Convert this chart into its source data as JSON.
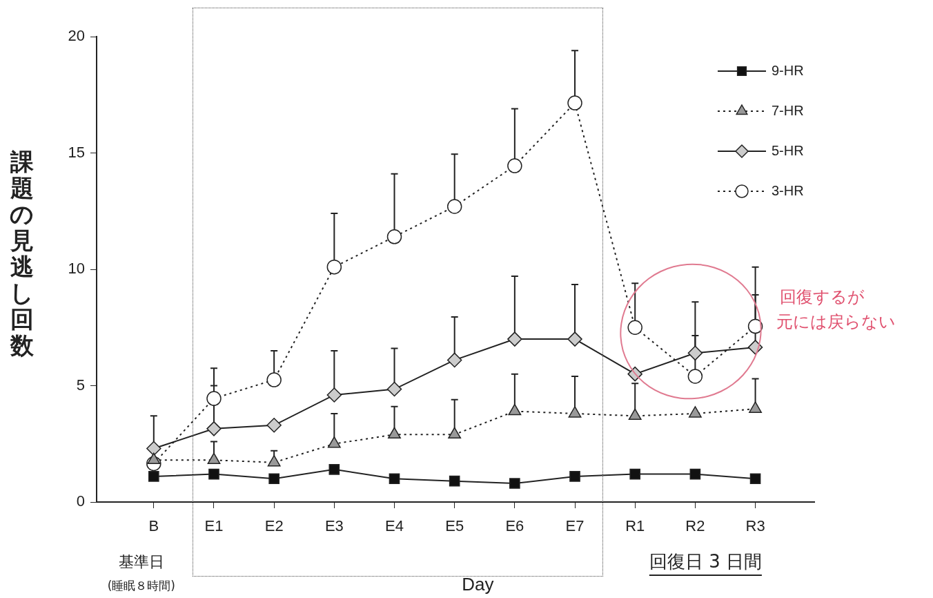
{
  "chart_data": {
    "type": "line",
    "xlabel": "Day",
    "ylabel": "課題の見逃し回数",
    "categories": [
      "B",
      "E1",
      "E2",
      "E3",
      "E4",
      "E5",
      "E6",
      "E7",
      "R1",
      "R2",
      "R3"
    ],
    "ylim": [
      0,
      20
    ],
    "yticks": [
      0,
      5,
      10,
      15,
      20
    ],
    "grid": false,
    "legend": "top right",
    "series": [
      {
        "name": "9-HR",
        "color": "#111111",
        "marker": "square",
        "line_style": "solid",
        "values": [
          1.1,
          1.2,
          1.0,
          1.4,
          1.0,
          0.9,
          0.8,
          1.1,
          1.2,
          1.2,
          1.0
        ]
      },
      {
        "name": "7-HR",
        "color": "#999999",
        "marker": "triangle",
        "line_style": "dotted",
        "values": [
          1.8,
          1.8,
          1.7,
          2.5,
          2.9,
          2.9,
          3.9,
          3.8,
          3.7,
          3.8,
          4.0
        ],
        "errors": [
          null,
          [
            1.8,
            2.6
          ],
          [
            1.7,
            2.2
          ],
          [
            2.5,
            3.8
          ],
          [
            2.9,
            4.1
          ],
          [
            2.9,
            4.4
          ],
          [
            3.9,
            5.5
          ],
          [
            3.8,
            5.4
          ],
          [
            3.7,
            5.1
          ],
          null,
          [
            4.0,
            5.3
          ]
        ]
      },
      {
        "name": "5-HR",
        "color": "#cccccc",
        "marker": "diamond",
        "line_style": "solid",
        "values": [
          2.3,
          3.15,
          3.3,
          4.6,
          4.85,
          6.1,
          7.0,
          7.0,
          5.5,
          6.4,
          6.65
        ],
        "errors": [
          [
            2.3,
            3.7
          ],
          [
            3.15,
            5.0
          ],
          null,
          [
            4.6,
            6.5
          ],
          [
            4.85,
            6.6
          ],
          [
            6.1,
            7.95
          ],
          [
            7.0,
            9.7
          ],
          [
            7.0,
            9.35
          ],
          null,
          [
            6.4,
            7.15
          ],
          [
            6.65,
            8.9
          ]
        ]
      },
      {
        "name": "3-HR",
        "color": "#ffffff",
        "marker": "circle",
        "line_style": "dotted",
        "values": [
          1.65,
          4.45,
          5.25,
          10.1,
          11.4,
          12.7,
          14.45,
          17.15,
          7.5,
          5.4,
          7.55
        ],
        "errors": [
          null,
          [
            4.45,
            5.75
          ],
          [
            5.25,
            6.5
          ],
          [
            10.1,
            12.4
          ],
          [
            11.4,
            14.1
          ],
          [
            12.7,
            14.95
          ],
          [
            14.45,
            16.9
          ],
          [
            17.15,
            19.4
          ],
          [
            7.5,
            9.4
          ],
          [
            5.4,
            8.6
          ],
          [
            7.55,
            10.1
          ]
        ]
      }
    ],
    "annotations": [
      "基準日",
      "(睡眠８時間)",
      "回復日 3 日間",
      "回復するが",
      "元には戻らない"
    ]
  }
}
